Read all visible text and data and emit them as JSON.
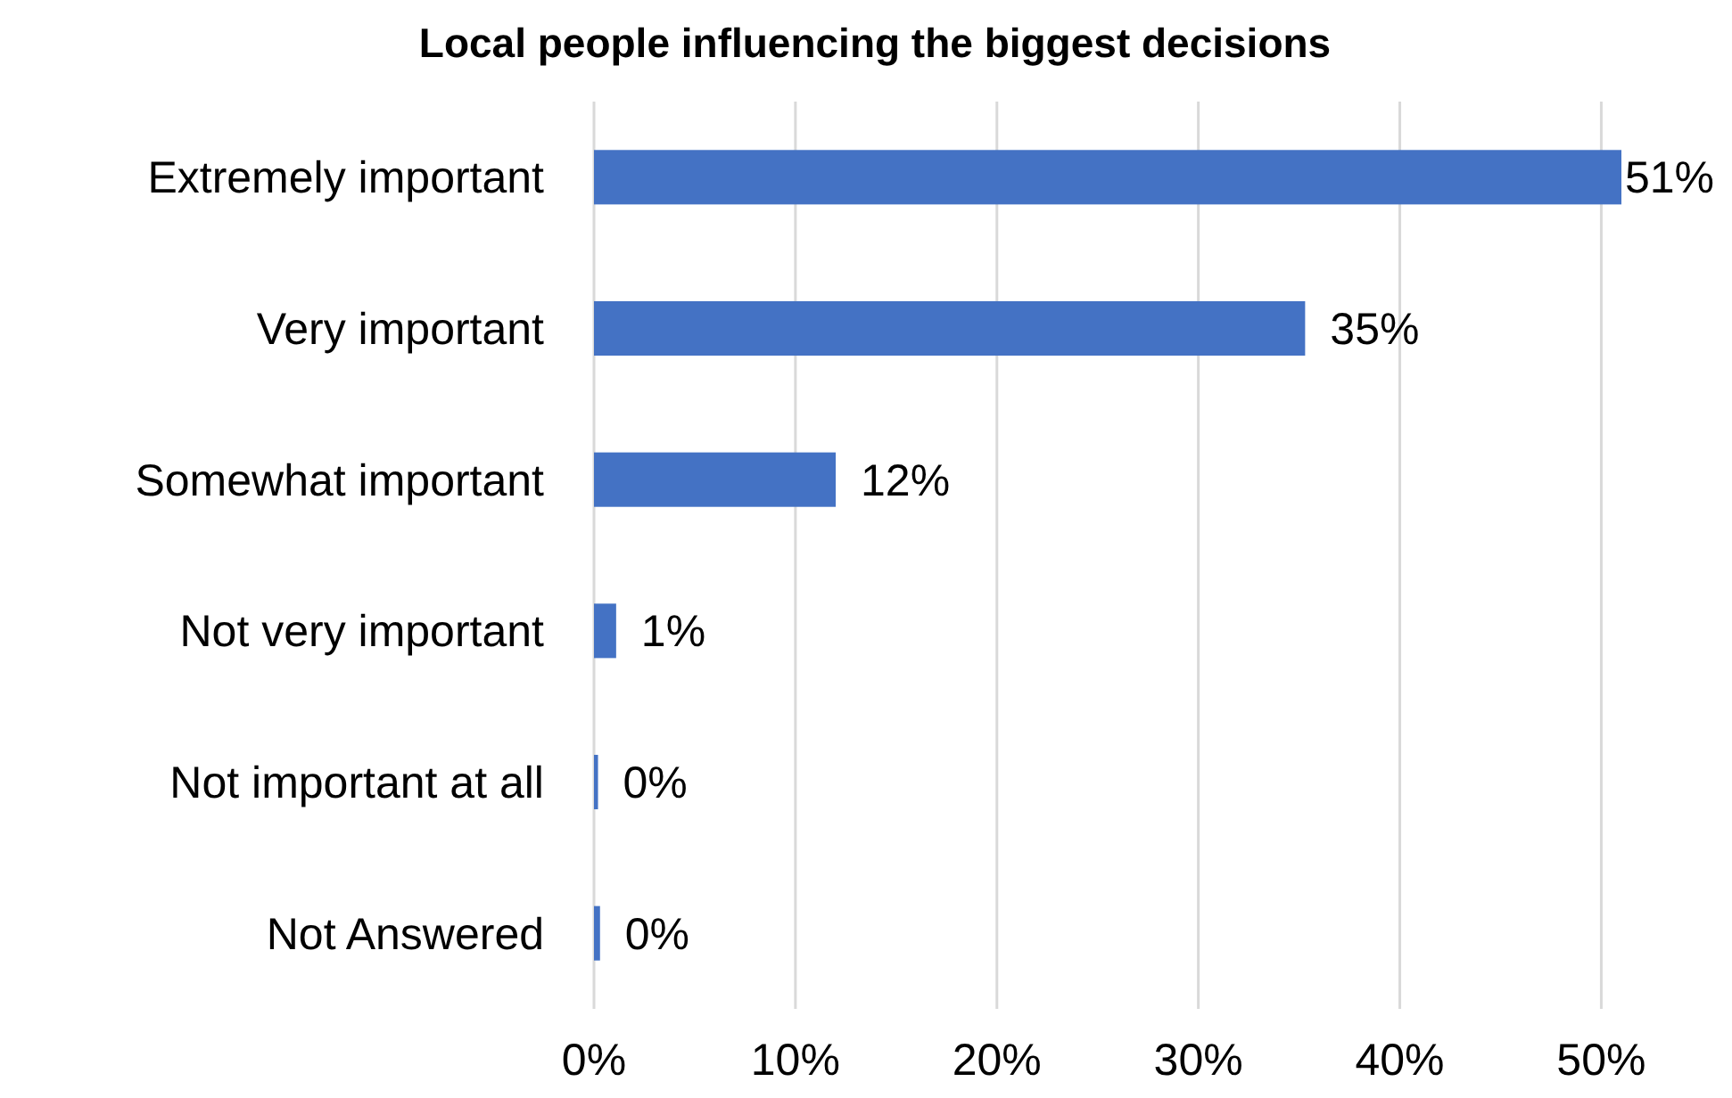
{
  "chart_data": {
    "type": "bar",
    "orientation": "horizontal",
    "title": "Local people influencing the biggest decisions",
    "categories": [
      "Extremely important",
      "Very important",
      "Somewhat important",
      "Not very important",
      "Not important at all",
      "Not Answered"
    ],
    "values": [
      51,
      35.3,
      12,
      1.1,
      0.2,
      0.3
    ],
    "value_labels": [
      "51%",
      "35%",
      "12%",
      "1%",
      "0%",
      "0%"
    ],
    "color": "#4472c4",
    "xlim": [
      0,
      51
    ],
    "xticks": [
      {
        "value": 0,
        "label": "0%"
      },
      {
        "value": 10,
        "label": "10%"
      },
      {
        "value": 20,
        "label": "20%"
      },
      {
        "value": 30,
        "label": "30%"
      },
      {
        "value": 40,
        "label": "40%"
      },
      {
        "value": 50,
        "label": "50%"
      }
    ],
    "grid": "x"
  }
}
